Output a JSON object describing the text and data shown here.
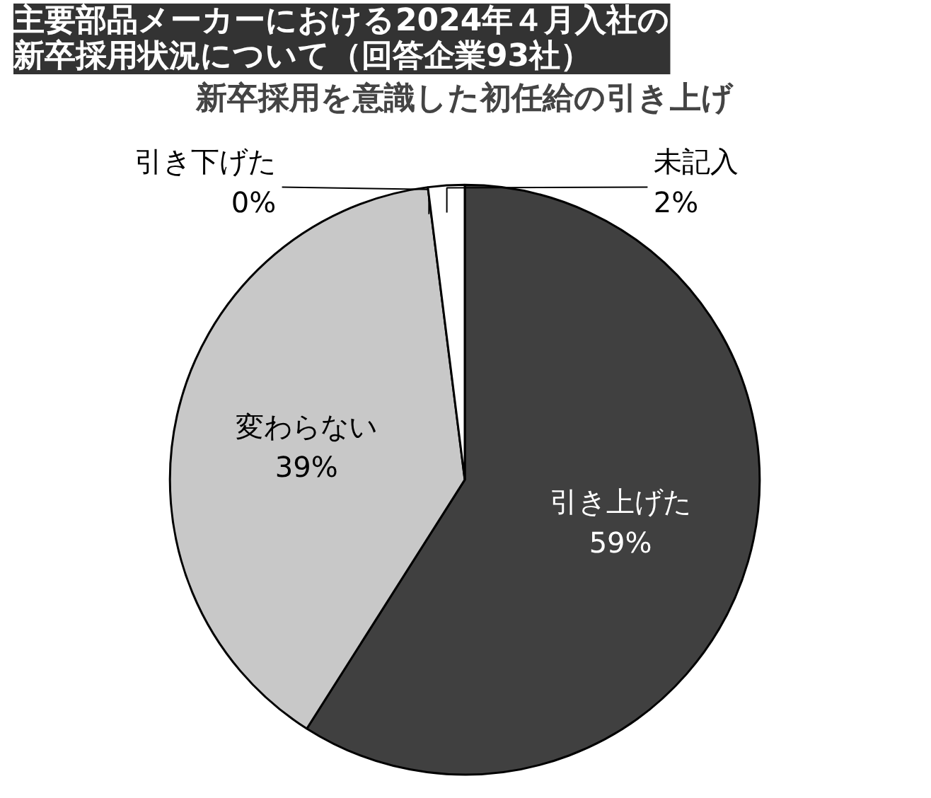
{
  "chart_data": {
    "type": "pie",
    "title": "主要部品メーカーにおける2024年４月入社の新卒採用状況について（回答企業93社）",
    "subtitle": "新卒採用を意識した初任給の引き上げ",
    "categories": [
      "引き上げた",
      "変わらない",
      "引き下げた",
      "未記入"
    ],
    "values": [
      59,
      39,
      0,
      2
    ],
    "colors": [
      "#404040",
      "#c8c8c8",
      "#c8c8c8",
      "#ffffff"
    ],
    "value_labels": [
      "59%",
      "39%",
      "0%",
      "2%"
    ]
  }
}
